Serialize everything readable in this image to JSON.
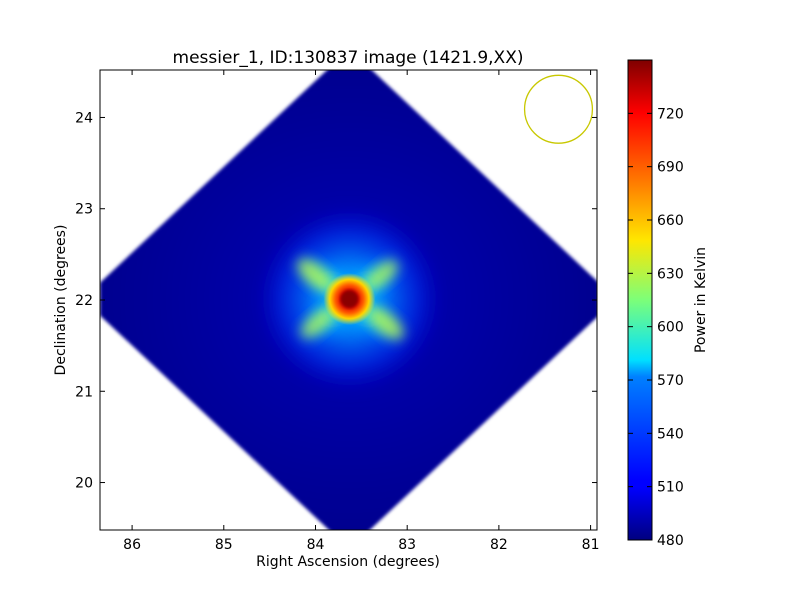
{
  "chart_data": {
    "type": "heatmap",
    "title": "messier_1, ID:130837 image (1421.9,XX)",
    "xlabel": "Right Ascension (degrees)",
    "ylabel": "Declination (degrees)",
    "xlim": [
      86.35,
      80.93
    ],
    "ylim": [
      19.48,
      24.52
    ],
    "x_ticks": [
      86,
      85,
      84,
      83,
      82,
      81
    ],
    "y_ticks": [
      20,
      21,
      22,
      23,
      24
    ],
    "colorbar": {
      "label": "Power in Kelvin",
      "range": [
        480,
        750
      ],
      "ticks": [
        480,
        510,
        540,
        570,
        600,
        630,
        660,
        690,
        720
      ],
      "colormap": "jet"
    },
    "image_region": {
      "shape": "diamond",
      "center": [
        83.63,
        22.01
      ],
      "half_width_ra": 2.72,
      "half_height_dec": 2.56,
      "background_value": 486
    },
    "source": {
      "center": [
        83.63,
        22.01
      ],
      "peak_value": 745
    },
    "beam_circle": {
      "center": [
        81.35,
        24.09
      ],
      "radius_deg": 0.37,
      "color": "#c8c800"
    }
  }
}
